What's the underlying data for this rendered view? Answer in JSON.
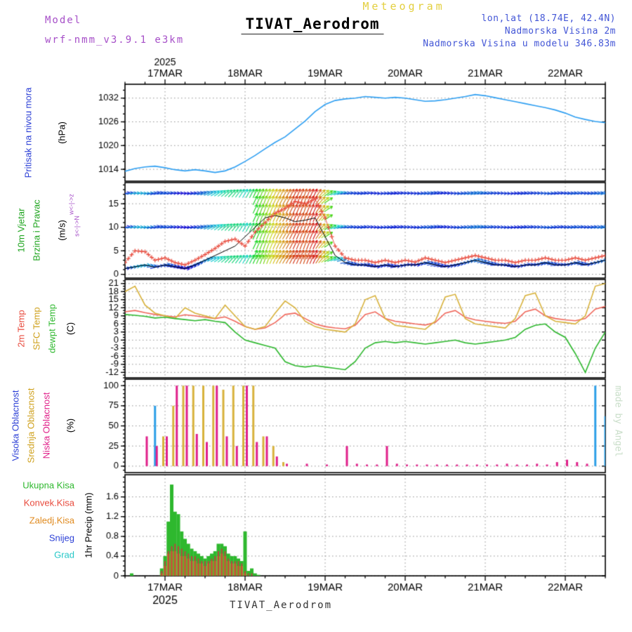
{
  "header": {
    "meteogram_label": "Meteogram",
    "model_label": "Model",
    "model_value": "wrf-nmm_v3.9.1 e3km",
    "station_title": "TIVAT_Aerodrom",
    "lonlat": "lon,lat (18.74E, 42.4N)",
    "elevation": "Nadmorska Visina 2m",
    "model_elevation": "Nadmorska Visina u modelu 346.83m"
  },
  "footer": {
    "station_label": "TIVAT_Aerodrom"
  },
  "watermark": "made by Angel",
  "x_axis": {
    "year_label": "2025",
    "day_labels": [
      "17MAR",
      "18MAR",
      "19MAR",
      "20MAR",
      "21MAR",
      "22MAR"
    ],
    "day_hours": [
      12,
      36,
      60,
      84,
      108,
      132
    ],
    "total_hours": 144
  },
  "colors": {
    "pressure": "#2e9ff2",
    "wind_gust": "#e84a3c",
    "wind_mean": "#000000",
    "temp_2m": "#f0685c",
    "temp_sfc": "#d8b23c",
    "temp_dew": "#2eb82e",
    "cloud_high": "#2c9fe8",
    "cloud_mid": "#d8b23c",
    "cloud_low": "#e0218a",
    "precip_total": "#2eb82e",
    "precip_convective": "#b5493d",
    "precip_freezing": "#d88a2e",
    "precip_snow": "#2745e0",
    "precip_hail": "#25c7c7",
    "grid": "#909090",
    "frame": "#000000"
  },
  "chart_data": [
    {
      "name": "pressure",
      "type": "line",
      "side_title": "Pritisak na nivou mora",
      "unit": "(hPa)",
      "yticks": [
        1014,
        1020,
        1026,
        1032
      ],
      "ytick_minor": 2,
      "ylim": [
        1011,
        1035.5
      ],
      "x_step_hours": 3,
      "color_key": "pressure",
      "values": [
        1013.5,
        1014.2,
        1014.6,
        1014.8,
        1014.4,
        1013.9,
        1013.6,
        1013.9,
        1013.6,
        1013.2,
        1013.6,
        1014.6,
        1016.0,
        1017.5,
        1019.2,
        1020.8,
        1022.2,
        1024.2,
        1026.2,
        1028.6,
        1030.4,
        1031.4,
        1031.8,
        1032.0,
        1032.4,
        1032.2,
        1032.0,
        1032.2,
        1032.0,
        1031.6,
        1031.2,
        1031.3,
        1031.6,
        1032.0,
        1032.4,
        1032.9,
        1032.6,
        1032.1,
        1031.6,
        1031.1,
        1030.6,
        1030.1,
        1029.6,
        1029.0,
        1028.2,
        1027.2,
        1026.6,
        1026.1,
        1025.8
      ]
    },
    {
      "name": "wind",
      "type": "line",
      "side_title_1": "10m Vjetar",
      "side_title_2": "Brzina i Pravac",
      "unit": "(m/s)",
      "compass_ew": "w<-|->z",
      "compass_ns": "s<-|->N",
      "yticks": [
        0,
        5,
        10,
        15
      ],
      "ytick_minor": 1,
      "ylim": [
        -0.8,
        19.5
      ],
      "x_step_hours": 3,
      "series": [
        {
          "name": "gust",
          "color_key": "wind_gust",
          "marker": "plus",
          "values": [
            2.5,
            5.0,
            4.8,
            3.0,
            3.5,
            2.5,
            2.0,
            3.0,
            4.2,
            5.5,
            7.0,
            7.5,
            6.0,
            9.0,
            11.0,
            13.0,
            14.0,
            15.5,
            15.0,
            16.0,
            12.0,
            6.0,
            3.5,
            3.0,
            3.0,
            2.5,
            3.0,
            2.5,
            3.0,
            2.6,
            3.5,
            3.0,
            2.5,
            3.0,
            3.5,
            4.0,
            3.5,
            3.0,
            3.0,
            2.5,
            3.0,
            3.0,
            3.5,
            3.0,
            3.0,
            3.5,
            3.0,
            3.5,
            4.0
          ]
        },
        {
          "name": "mean",
          "color_key": "wind_mean",
          "values": [
            1.2,
            1.6,
            2.0,
            1.5,
            2.0,
            1.6,
            1.2,
            2.0,
            3.0,
            4.0,
            5.0,
            6.0,
            8.0,
            10.0,
            12.0,
            12.5,
            12.0,
            11.2,
            11.5,
            12.0,
            8.0,
            4.0,
            2.5,
            2.0,
            2.0,
            1.6,
            2.0,
            1.6,
            2.0,
            2.0,
            2.5,
            2.0,
            1.6,
            2.0,
            2.5,
            3.0,
            2.5,
            2.0,
            2.0,
            1.6,
            2.0,
            2.0,
            2.5,
            2.0,
            2.0,
            2.5,
            2.0,
            2.5,
            3.0
          ]
        },
        {
          "name": "direction_deg",
          "values": [
            10,
            5,
            0,
            15,
            10,
            5,
            0,
            10,
            20,
            30,
            40,
            50,
            60,
            65,
            70,
            65,
            60,
            65,
            70,
            65,
            40,
            20,
            10,
            5,
            10,
            0,
            5,
            10,
            5,
            0,
            10,
            15,
            5,
            0,
            10,
            15,
            10,
            5,
            0,
            5,
            10,
            5,
            0,
            10,
            5,
            10,
            5,
            10,
            15
          ]
        }
      ]
    },
    {
      "name": "temp",
      "type": "line",
      "unit": "(C)",
      "yticks": [
        -12,
        -9,
        -6,
        -3,
        0,
        3,
        6,
        9,
        12,
        15,
        18,
        21
      ],
      "ytick_minor": 1,
      "ylim": [
        -14,
        22.5
      ],
      "x_step_hours": 3,
      "series": [
        {
          "name": "2m Temp",
          "color_key": "temp_2m",
          "values": [
            10.5,
            11.0,
            10.2,
            9.5,
            9.0,
            8.6,
            9.4,
            9.0,
            8.5,
            8.0,
            8.6,
            7.0,
            5.0,
            4.0,
            4.5,
            6.5,
            9.5,
            10.0,
            8.0,
            6.0,
            5.0,
            4.5,
            4.2,
            5.5,
            9.5,
            10.5,
            8.0,
            7.0,
            6.5,
            6.0,
            5.6,
            6.5,
            10.0,
            11.0,
            8.5,
            7.5,
            7.0,
            6.5,
            6.2,
            7.0,
            10.5,
            11.5,
            9.0,
            8.0,
            7.5,
            7.2,
            8.0,
            11.5,
            12.5
          ]
        },
        {
          "name": "SFC Temp",
          "color_key": "temp_sfc",
          "values": [
            18.0,
            20.0,
            13.0,
            10.0,
            9.0,
            8.0,
            12.0,
            10.0,
            9.0,
            8.0,
            13.0,
            9.0,
            5.0,
            4.0,
            5.0,
            10.0,
            14.5,
            12.0,
            7.0,
            5.0,
            4.0,
            3.5,
            3.0,
            6.0,
            15.0,
            16.5,
            8.0,
            5.5,
            5.0,
            4.5,
            4.0,
            7.0,
            16.0,
            17.0,
            8.0,
            6.0,
            5.5,
            5.0,
            4.5,
            8.0,
            16.5,
            17.5,
            9.0,
            7.0,
            6.5,
            6.0,
            9.0,
            20.0,
            21.0
          ]
        },
        {
          "name": "dewpt Temp",
          "color_key": "temp_dew",
          "values": [
            9.5,
            9.2,
            8.8,
            8.2,
            8.5,
            8.0,
            7.6,
            7.2,
            7.6,
            7.0,
            6.5,
            3.0,
            0.0,
            -1.0,
            -2.0,
            -3.0,
            -8.0,
            -9.5,
            -10.0,
            -9.5,
            -10.0,
            -10.5,
            -11.0,
            -8.0,
            -3.0,
            -1.0,
            -0.5,
            -1.0,
            -0.5,
            -1.0,
            -1.5,
            -1.0,
            -0.5,
            0.0,
            -1.0,
            -1.5,
            -1.0,
            -0.5,
            0.0,
            1.0,
            4.0,
            5.5,
            6.0,
            3.0,
            1.0,
            -5.0,
            -12.0,
            -3.0,
            3.0
          ]
        }
      ]
    },
    {
      "name": "cloud",
      "type": "bar",
      "unit": "(%)",
      "yticks": [
        0,
        25,
        50,
        75,
        100
      ],
      "ytick_minor": 5,
      "ylim": [
        -8,
        108
      ],
      "x_step_hours": 3,
      "series": [
        {
          "name": "Visoka Oblacnost",
          "color_key": "cloud_high",
          "values": [
            0,
            0,
            0,
            75,
            0,
            0,
            0,
            0,
            0,
            0,
            0,
            0,
            0,
            0,
            0,
            0,
            0,
            0,
            0,
            0,
            0,
            0,
            0,
            0,
            0,
            0,
            0,
            0,
            0,
            0,
            0,
            0,
            0,
            0,
            0,
            0,
            0,
            0,
            0,
            0,
            0,
            0,
            0,
            0,
            0,
            0,
            0,
            100,
            62
          ]
        },
        {
          "name": "Srednja Oblacnost",
          "color_key": "cloud_mid",
          "values": [
            0,
            0,
            0,
            0,
            37,
            75,
            100,
            100,
            100,
            100,
            95,
            100,
            100,
            100,
            37,
            25,
            5,
            0,
            0,
            0,
            0,
            0,
            0,
            0,
            0,
            0,
            0,
            0,
            0,
            0,
            0,
            0,
            0,
            0,
            0,
            0,
            0,
            0,
            0,
            0,
            0,
            0,
            0,
            0,
            0,
            0,
            0,
            0,
            0
          ]
        },
        {
          "name": "Niska Oblacnost",
          "color_key": "cloud_low",
          "values": [
            0,
            0,
            37,
            25,
            37,
            100,
            100,
            40,
            30,
            100,
            37,
            25,
            100,
            30,
            37,
            12,
            3,
            0,
            3,
            0,
            2,
            0,
            25,
            3,
            2,
            2,
            25,
            3,
            2,
            2,
            2,
            2,
            2,
            2,
            2,
            2,
            2,
            2,
            3,
            2,
            2,
            3,
            2,
            5,
            8,
            5,
            3,
            0,
            0
          ]
        }
      ]
    },
    {
      "name": "precip",
      "type": "bar",
      "unit": "1hr Precip (mm)",
      "yticks": [
        0,
        0.4,
        0.8,
        1.2,
        1.6
      ],
      "ytick_minor": 0.1,
      "ylim": [
        0,
        2.05
      ],
      "x_hours": [
        2,
        11,
        12,
        13,
        14,
        15,
        16,
        17,
        18,
        19,
        20,
        21,
        22,
        23,
        24,
        25,
        26,
        27,
        28,
        29,
        30,
        31,
        32,
        33,
        34,
        35,
        36,
        37,
        38,
        39,
        40
      ],
      "series": [
        {
          "name": "Ukupna Kisa",
          "color_key": "precip_total",
          "values": [
            0.05,
            0.15,
            0.4,
            1.1,
            1.85,
            1.3,
            1.25,
            0.9,
            0.75,
            0.65,
            0.55,
            0.5,
            0.45,
            0.4,
            0.35,
            0.4,
            0.45,
            0.5,
            0.65,
            0.65,
            0.6,
            0.45,
            0.4,
            0.4,
            0.35,
            0.3,
            0.9,
            0.1,
            0.15,
            0.05,
            0.02
          ]
        },
        {
          "name": "Konvek.Kisa",
          "color_key": "precip_convective",
          "values": [
            0,
            0.1,
            0.3,
            0.5,
            0.6,
            0.65,
            0.6,
            0.55,
            0.5,
            0.45,
            0.4,
            0.4,
            0.35,
            0.3,
            0.3,
            0.3,
            0.35,
            0.4,
            0.5,
            0.55,
            0.5,
            0.35,
            0.3,
            0.3,
            0.3,
            0.25,
            0.1,
            0.05,
            0.05,
            0,
            0
          ]
        },
        {
          "name": "Zaledj.Kisa",
          "color_key": "precip_freezing",
          "values": [
            0,
            0.05,
            0.2,
            0.45,
            0.5,
            0.5,
            0.45,
            0.4,
            0.4,
            0.35,
            0.3,
            0.3,
            0.25,
            0.25,
            0.2,
            0.25,
            0.3,
            0.3,
            0.4,
            0.45,
            0.4,
            0.3,
            0.25,
            0.25,
            0.2,
            0.2,
            0.05,
            0,
            0,
            0,
            0
          ]
        },
        {
          "name": "Snijeg",
          "color_key": "precip_snow",
          "values": []
        },
        {
          "name": "Grad",
          "color_key": "precip_hail",
          "values": []
        }
      ]
    }
  ]
}
